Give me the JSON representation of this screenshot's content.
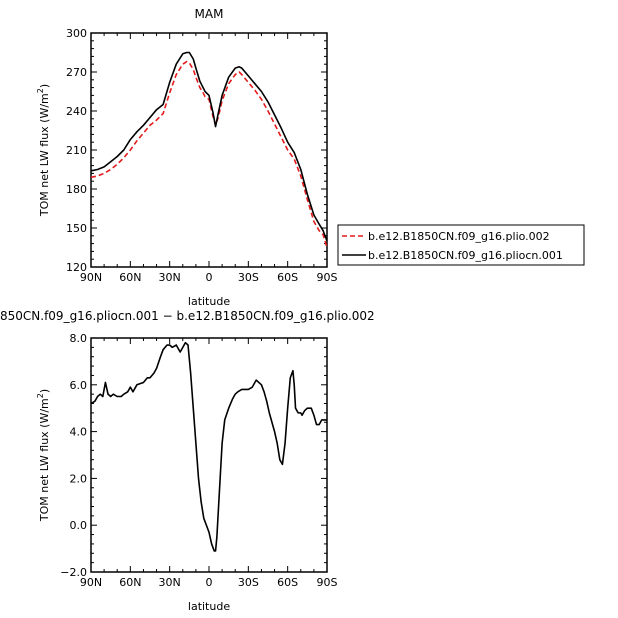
{
  "chart_data": [
    {
      "type": "line",
      "title": "MAM",
      "xlabel": "latitude",
      "ylabel": "TOM net LW flux (W/m",
      "ylabel_sup": "2",
      "ylabel_close": ")",
      "xlim": [
        90,
        -90
      ],
      "ylim": [
        120,
        300
      ],
      "xticks": [
        90,
        60,
        30,
        0,
        -30,
        -60,
        -90
      ],
      "xtick_labels": [
        "90N",
        "60N",
        "30N",
        "0",
        "30S",
        "60S",
        "90S"
      ],
      "yticks": [
        120,
        150,
        180,
        210,
        240,
        270,
        300
      ],
      "ytick_labels": [
        "120",
        "150",
        "180",
        "210",
        "240",
        "270",
        "300"
      ],
      "legend_position": "right",
      "series": [
        {
          "name": "b.e12.B1850CN.f09_g16.plio.002",
          "color": "#e41a1c",
          "dashed": true,
          "x": [
            90,
            85,
            80,
            75,
            70,
            65,
            60,
            55,
            50,
            45,
            40,
            35,
            30,
            25,
            20,
            17,
            15,
            12,
            10,
            7,
            5,
            3,
            0,
            -3,
            -5,
            -7,
            -10,
            -15,
            -20,
            -23,
            -25,
            -30,
            -35,
            -40,
            -45,
            -50,
            -55,
            -60,
            -65,
            -70,
            -75,
            -80,
            -84,
            -87,
            -90
          ],
          "y": [
            189,
            190,
            192,
            195,
            199,
            204,
            210,
            217,
            223,
            229,
            233,
            238,
            254,
            268,
            276,
            278,
            277,
            272,
            266,
            258,
            255,
            251,
            249,
            236,
            229,
            235,
            248,
            261,
            268,
            270,
            268,
            262,
            256,
            249,
            240,
            230,
            220,
            210,
            203,
            190,
            172,
            155,
            148,
            145,
            135
          ]
        },
        {
          "name": "b.e12.B1850CN.f09_g16.pliocn.001",
          "color": "#000000",
          "dashed": false,
          "x": [
            90,
            85,
            80,
            75,
            70,
            65,
            60,
            55,
            50,
            45,
            40,
            35,
            30,
            25,
            20,
            17,
            15,
            12,
            10,
            7,
            5,
            3,
            0,
            -3,
            -5,
            -7,
            -10,
            -15,
            -20,
            -23,
            -25,
            -30,
            -35,
            -40,
            -45,
            -50,
            -55,
            -60,
            -65,
            -70,
            -75,
            -80,
            -84,
            -87,
            -90
          ],
          "y": [
            194,
            195,
            197,
            201,
            205,
            210,
            218,
            224,
            229,
            235,
            241,
            245,
            262,
            276,
            284,
            285,
            285,
            280,
            273,
            263,
            259,
            255,
            252,
            239,
            228,
            238,
            252,
            266,
            273,
            274,
            273,
            267,
            261,
            255,
            247,
            237,
            227,
            216,
            208,
            195,
            176,
            160,
            153,
            148,
            140
          ]
        }
      ]
    },
    {
      "type": "line",
      "title": "850CN.f09_g16.pliocn.001 − b.e12.B1850CN.f09_g16.plio.002",
      "xlabel": "latitude",
      "ylabel": "TOM net LW flux (W/m",
      "ylabel_sup": "2",
      "ylabel_close": ")",
      "xlim": [
        90,
        -90
      ],
      "ylim": [
        -2.0,
        8.0
      ],
      "xticks": [
        90,
        60,
        30,
        0,
        -30,
        -60,
        -90
      ],
      "xtick_labels": [
        "90N",
        "60N",
        "30N",
        "0",
        "30S",
        "60S",
        "90S"
      ],
      "yticks": [
        -2.0,
        0.0,
        2.0,
        4.0,
        6.0,
        8.0
      ],
      "ytick_labels": [
        "−2.0",
        "0.0",
        "2.0",
        "4.0",
        "6.0",
        "8.0"
      ],
      "series": [
        {
          "color": "#000000",
          "dashed": false,
          "x": [
            90,
            87,
            85,
            83,
            81,
            79,
            77,
            75,
            73,
            70,
            67,
            65,
            62,
            60,
            58,
            55,
            50,
            47,
            45,
            42,
            40,
            37,
            35,
            32,
            30,
            28,
            25,
            22,
            20,
            18,
            16,
            14,
            12,
            10,
            8,
            6,
            4,
            2,
            0,
            -2,
            -4,
            -5,
            -6,
            -8,
            -10,
            -12,
            -15,
            -18,
            -20,
            -22,
            -25,
            -28,
            -30,
            -33,
            -36,
            -38,
            -40,
            -42,
            -44,
            -46,
            -48,
            -50,
            -52,
            -54,
            -56,
            -58,
            -60,
            -62,
            -64,
            -65,
            -66,
            -68,
            -70,
            -71,
            -72,
            -73,
            -75,
            -78,
            -80,
            -82,
            -84,
            -85,
            -86,
            -88,
            -90
          ],
          "y": [
            5.2,
            5.3,
            5.5,
            5.6,
            5.5,
            6.1,
            5.6,
            5.5,
            5.6,
            5.5,
            5.5,
            5.6,
            5.7,
            5.9,
            5.7,
            6.0,
            6.1,
            6.3,
            6.3,
            6.5,
            6.7,
            7.2,
            7.5,
            7.7,
            7.7,
            7.6,
            7.7,
            7.4,
            7.6,
            7.8,
            7.7,
            6.5,
            5.0,
            3.5,
            2.0,
            1.0,
            0.3,
            0.0,
            -0.3,
            -0.8,
            -1.1,
            -1.1,
            -0.5,
            1.5,
            3.5,
            4.5,
            5.0,
            5.4,
            5.6,
            5.7,
            5.8,
            5.8,
            5.8,
            5.9,
            6.2,
            6.1,
            6.0,
            5.7,
            5.3,
            4.8,
            4.4,
            4.0,
            3.5,
            2.8,
            2.6,
            3.5,
            5.0,
            6.3,
            6.6,
            6.0,
            5.0,
            4.8,
            4.8,
            4.7,
            4.8,
            4.9,
            5.0,
            5.0,
            4.7,
            4.3,
            4.3,
            4.4,
            4.5,
            4.5,
            4.5
          ]
        }
      ]
    }
  ]
}
